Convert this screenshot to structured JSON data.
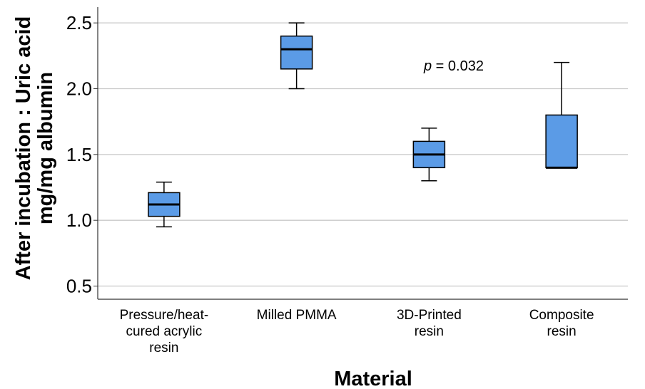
{
  "chart_data": {
    "type": "box",
    "xlabel": "Material",
    "ylabel_lines": [
      "After incubation : Uric acid",
      "mg/mg albumin"
    ],
    "ylim": [
      0.4,
      2.62
    ],
    "yticks": [
      0.5,
      1.0,
      1.5,
      2.0,
      2.5
    ],
    "ytick_labels": [
      "0.5",
      "1.0",
      "1.5",
      "2.0",
      "2.5"
    ],
    "grid": "horizontal",
    "box_color": "#5b9be6",
    "annotation": {
      "italic": "p",
      "rest": " = 0.032"
    },
    "categories": [
      {
        "label_lines": [
          "Pressure/heat-",
          "cured acrylic",
          "resin"
        ],
        "min": 0.95,
        "q1": 1.03,
        "median": 1.12,
        "q3": 1.21,
        "max": 1.29
      },
      {
        "label_lines": [
          "Milled PMMA"
        ],
        "min": 2.0,
        "q1": 2.15,
        "median": 2.3,
        "q3": 2.4,
        "max": 2.5
      },
      {
        "label_lines": [
          "3D-Printed",
          "resin"
        ],
        "min": 1.3,
        "q1": 1.4,
        "median": 1.5,
        "q3": 1.6,
        "max": 1.7
      },
      {
        "label_lines": [
          "Composite",
          "resin"
        ],
        "min": 1.4,
        "q1": 1.4,
        "median": 1.4,
        "q3": 1.8,
        "max": 2.2
      }
    ]
  }
}
